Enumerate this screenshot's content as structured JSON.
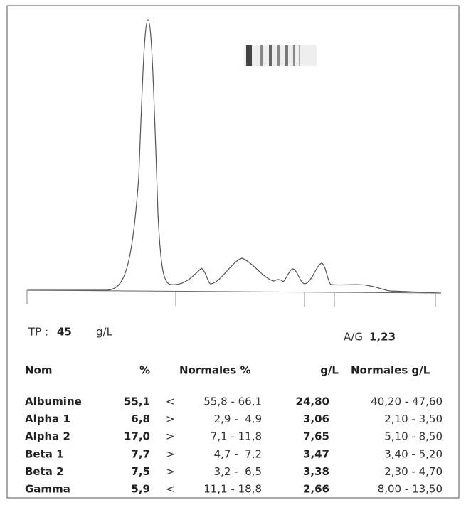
{
  "report": {
    "total_protein": {
      "label": "TP :",
      "value": "45",
      "unit": "g/L"
    },
    "ag_ratio": {
      "label": "A/G",
      "value": "1,23"
    },
    "table": {
      "headers": [
        "Nom",
        "%",
        "Normales %",
        "g/L",
        "Normales g/L"
      ],
      "rows": [
        [
          "Albumine",
          "55,1",
          "<",
          "55,8 - 66,1",
          "24,80",
          "40,20 - 47,60"
        ],
        [
          "Alpha 1",
          "6,8",
          ">",
          "2,9 -  4,9",
          "3,06",
          "2,10 - 3,50"
        ],
        [
          "Alpha 2",
          "17,0",
          ">",
          "7,1 - 11,8",
          "7,65",
          "5,10 - 8,50"
        ],
        [
          "Beta 1",
          "7,7",
          ">",
          "4,7 -  7,2",
          "3,47",
          "3,40 - 5,20"
        ],
        [
          "Beta 2",
          "7,5",
          ">",
          "3,2 -  6,5",
          "3,38",
          "2,30 - 4,70"
        ],
        [
          "Gamma",
          "5,9",
          "<",
          "11,1 - 18,8",
          "2,66",
          "8,00 - 13,50"
        ]
      ]
    }
  }
}
